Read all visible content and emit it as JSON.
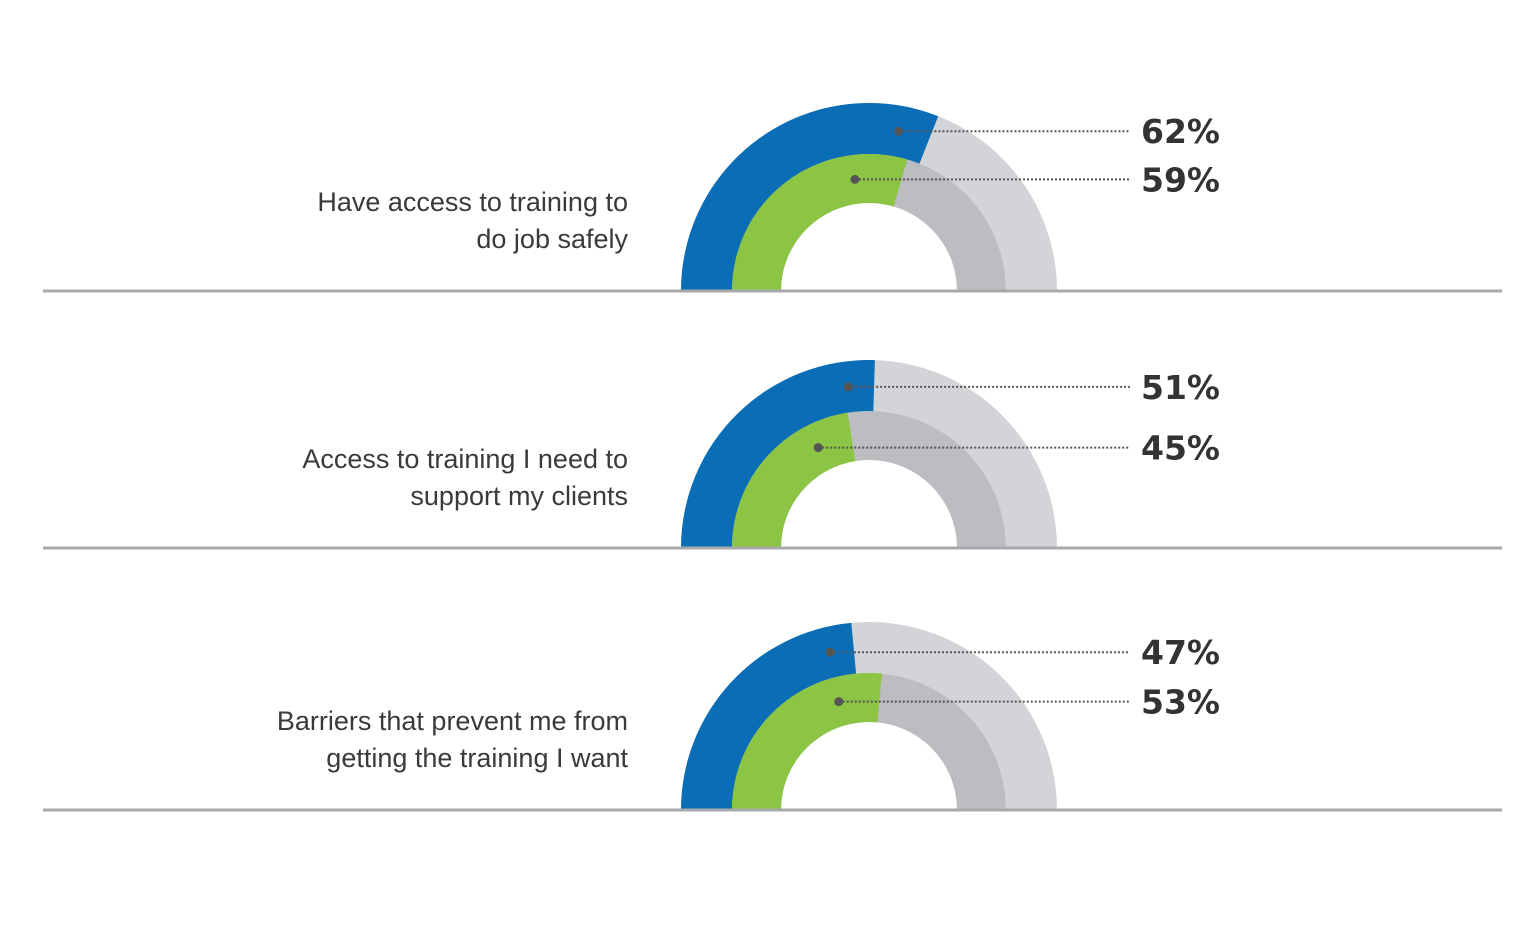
{
  "chart_data": {
    "type": "half-donut",
    "colors": {
      "outer": "#0a6db5",
      "inner": "#8cc443",
      "outer_track": "#d2d4d7",
      "inner_track": "#bbbdc0",
      "divider": "#a7a9ac",
      "leader": "#555555"
    },
    "rows": [
      {
        "label_lines": [
          "Have access to training to",
          "do job safely"
        ],
        "outer_value": 62,
        "inner_value": 59,
        "outer_text": "62%",
        "inner_text": "59%"
      },
      {
        "label_lines": [
          "Access to training I need to",
          "support my clients"
        ],
        "outer_value": 51,
        "inner_value": 45,
        "outer_text": "51%",
        "inner_text": "45%"
      },
      {
        "label_lines": [
          "Barriers that prevent me from",
          "getting the training I want"
        ],
        "outer_value": 47,
        "inner_value": 53,
        "outer_text": "47%",
        "inner_text": "53%"
      }
    ]
  }
}
